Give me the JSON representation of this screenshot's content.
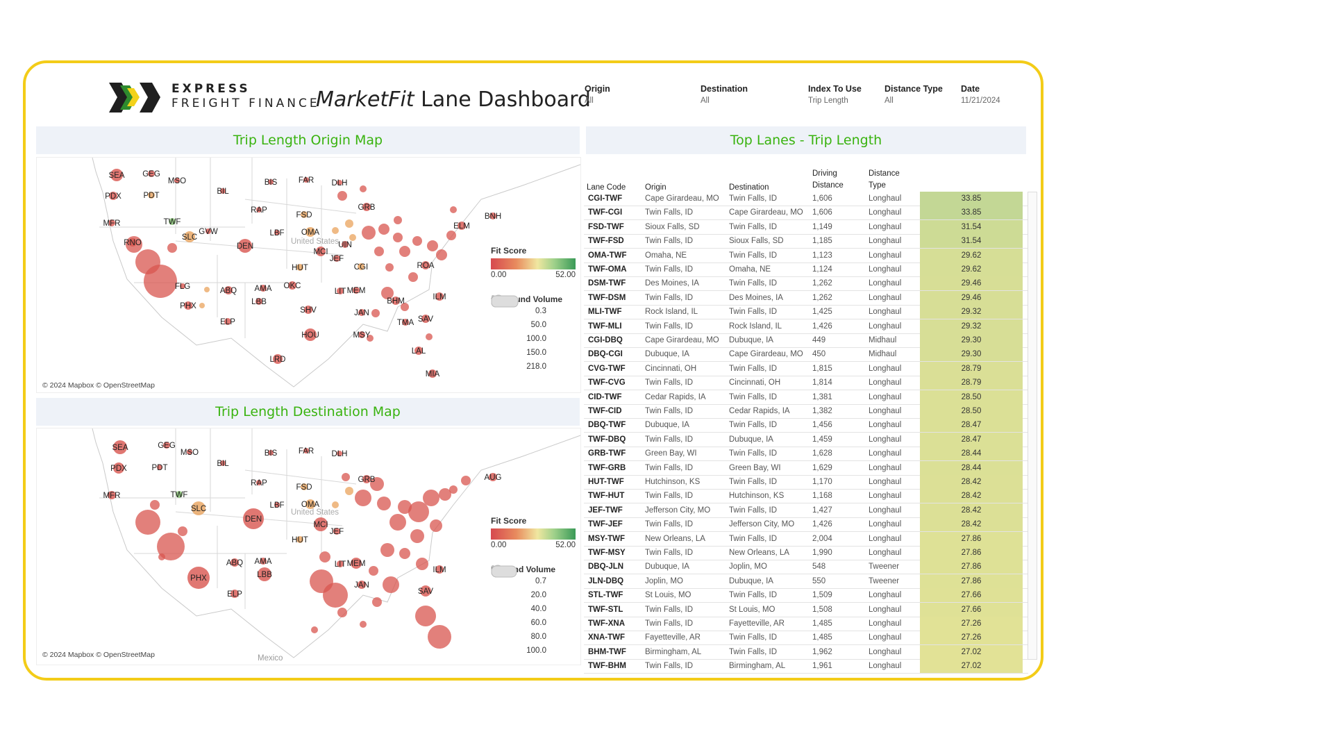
{
  "header": {
    "brand_line1": "EXPRESS",
    "brand_line2": "FREIGHT FINANCE",
    "title_italic": "MarketFit",
    "title_rest": " Lane Dashboard"
  },
  "filters": [
    {
      "label": "Origin",
      "value": "All"
    },
    {
      "label": "Destination",
      "value": "All"
    },
    {
      "label": "Index To Use",
      "value": "Trip Length"
    },
    {
      "label": "Distance Type",
      "value": "All"
    },
    {
      "label": "Date",
      "value": "11/21/2024"
    }
  ],
  "origin_map": {
    "title": "Trip Length Origin Map",
    "credit": "© 2024 Mapbox © OpenStreetMap",
    "country_label": "United States",
    "fit_legend": {
      "title": "Fit Score",
      "min": "0.00",
      "max": "52.00"
    },
    "volume_legend": {
      "title": "Outbound Volume",
      "values": [
        "0.3",
        "50.0",
        "100.0",
        "150.0",
        "218.0"
      ]
    },
    "cities": [
      "SEA",
      "GEG",
      "MSO",
      "BIS",
      "FAR",
      "DLH",
      "PDX",
      "PDT",
      "BIL",
      "MFR",
      "TWF",
      "RAP",
      "FSD",
      "GRB",
      "BNH",
      "ELM",
      "GVW",
      "SLC",
      "DEN",
      "LBF",
      "OMA",
      "UIN",
      "RNO",
      "MCI",
      "JEF",
      "CGI",
      "HUT",
      "ROA",
      "FLG",
      "ABQ",
      "AMA",
      "OKC",
      "LIT",
      "MEM",
      "PHX",
      "LBB",
      "BHM",
      "ILM",
      "ELP",
      "SHV",
      "JAN",
      "TMA",
      "SAV",
      "HOU",
      "MSY",
      "LRD",
      "LAL",
      "MIA"
    ]
  },
  "dest_map": {
    "title": "Trip Length Destination Map",
    "credit": "© 2024 Mapbox © OpenStreetMap",
    "country_label": "United States",
    "mexico_label": "Mexico",
    "fit_legend": {
      "title": "Fit Score",
      "min": "0.00",
      "max": "52.00"
    },
    "volume_legend": {
      "title": "Inbound Volume",
      "values": [
        "0.7",
        "20.0",
        "40.0",
        "60.0",
        "80.0",
        "100.0"
      ]
    },
    "cities": [
      "SEA",
      "GEG",
      "MSO",
      "BIS",
      "FAR",
      "DLH",
      "PDX",
      "PDT",
      "BIL",
      "RAP",
      "MFR",
      "TWF",
      "FSD",
      "GRB",
      "AUG",
      "SLC",
      "DEN",
      "LBF",
      "OMA",
      "MCI",
      "JEF",
      "HUT",
      "ABQ",
      "AMA",
      "LIT",
      "MEM",
      "PHX",
      "LBB",
      "ELP",
      "JAN",
      "ILM",
      "SAV"
    ]
  },
  "top_lanes": {
    "title": "Top Lanes - Trip Length",
    "columns": [
      "Lane Code",
      "Origin",
      "Destination",
      "Driving Distance",
      "Distance Type"
    ],
    "rows": [
      [
        "CGI-TWF",
        "Cape Girardeau, MO",
        "Twin Falls, ID",
        "1,606",
        "Longhaul",
        "33.85"
      ],
      [
        "TWF-CGI",
        "Twin Falls, ID",
        "Cape Girardeau, MO",
        "1,606",
        "Longhaul",
        "33.85"
      ],
      [
        "FSD-TWF",
        "Sioux Falls, SD",
        "Twin Falls, ID",
        "1,149",
        "Longhaul",
        "31.54"
      ],
      [
        "TWF-FSD",
        "Twin Falls, ID",
        "Sioux Falls, SD",
        "1,185",
        "Longhaul",
        "31.54"
      ],
      [
        "OMA-TWF",
        "Omaha, NE",
        "Twin Falls, ID",
        "1,123",
        "Longhaul",
        "29.62"
      ],
      [
        "TWF-OMA",
        "Twin Falls, ID",
        "Omaha, NE",
        "1,124",
        "Longhaul",
        "29.62"
      ],
      [
        "DSM-TWF",
        "Des Moines, IA",
        "Twin Falls, ID",
        "1,262",
        "Longhaul",
        "29.46"
      ],
      [
        "TWF-DSM",
        "Twin Falls, ID",
        "Des Moines, IA",
        "1,262",
        "Longhaul",
        "29.46"
      ],
      [
        "MLI-TWF",
        "Rock Island, IL",
        "Twin Falls, ID",
        "1,425",
        "Longhaul",
        "29.32"
      ],
      [
        "TWF-MLI",
        "Twin Falls, ID",
        "Rock Island, IL",
        "1,426",
        "Longhaul",
        "29.32"
      ],
      [
        "CGI-DBQ",
        "Cape Girardeau, MO",
        "Dubuque, IA",
        "449",
        "Midhaul",
        "29.30"
      ],
      [
        "DBQ-CGI",
        "Dubuque, IA",
        "Cape Girardeau, MO",
        "450",
        "Midhaul",
        "29.30"
      ],
      [
        "CVG-TWF",
        "Cincinnati, OH",
        "Twin Falls, ID",
        "1,815",
        "Longhaul",
        "28.79"
      ],
      [
        "TWF-CVG",
        "Twin Falls, ID",
        "Cincinnati, OH",
        "1,814",
        "Longhaul",
        "28.79"
      ],
      [
        "CID-TWF",
        "Cedar Rapids, IA",
        "Twin Falls, ID",
        "1,381",
        "Longhaul",
        "28.50"
      ],
      [
        "TWF-CID",
        "Twin Falls, ID",
        "Cedar Rapids, IA",
        "1,382",
        "Longhaul",
        "28.50"
      ],
      [
        "DBQ-TWF",
        "Dubuque, IA",
        "Twin Falls, ID",
        "1,456",
        "Longhaul",
        "28.47"
      ],
      [
        "TWF-DBQ",
        "Twin Falls, ID",
        "Dubuque, IA",
        "1,459",
        "Longhaul",
        "28.47"
      ],
      [
        "GRB-TWF",
        "Green Bay, WI",
        "Twin Falls, ID",
        "1,628",
        "Longhaul",
        "28.44"
      ],
      [
        "TWF-GRB",
        "Twin Falls, ID",
        "Green Bay, WI",
        "1,629",
        "Longhaul",
        "28.44"
      ],
      [
        "HUT-TWF",
        "Hutchinson, KS",
        "Twin Falls, ID",
        "1,170",
        "Longhaul",
        "28.42"
      ],
      [
        "TWF-HUT",
        "Twin Falls, ID",
        "Hutchinson, KS",
        "1,168",
        "Longhaul",
        "28.42"
      ],
      [
        "JEF-TWF",
        "Jefferson City, MO",
        "Twin Falls, ID",
        "1,427",
        "Longhaul",
        "28.42"
      ],
      [
        "TWF-JEF",
        "Twin Falls, ID",
        "Jefferson City, MO",
        "1,426",
        "Longhaul",
        "28.42"
      ],
      [
        "MSY-TWF",
        "New Orleans, LA",
        "Twin Falls, ID",
        "2,004",
        "Longhaul",
        "27.86"
      ],
      [
        "TWF-MSY",
        "Twin Falls, ID",
        "New Orleans, LA",
        "1,990",
        "Longhaul",
        "27.86"
      ],
      [
        "DBQ-JLN",
        "Dubuque, IA",
        "Joplin, MO",
        "548",
        "Tweener",
        "27.86"
      ],
      [
        "JLN-DBQ",
        "Joplin, MO",
        "Dubuque, IA",
        "550",
        "Tweener",
        "27.86"
      ],
      [
        "STL-TWF",
        "St Louis, MO",
        "Twin Falls, ID",
        "1,509",
        "Longhaul",
        "27.66"
      ],
      [
        "TWF-STL",
        "Twin Falls, ID",
        "St Louis, MO",
        "1,508",
        "Longhaul",
        "27.66"
      ],
      [
        "TWF-XNA",
        "Twin Falls, ID",
        "Fayetteville, AR",
        "1,485",
        "Longhaul",
        "27.26"
      ],
      [
        "XNA-TWF",
        "Fayetteville, AR",
        "Twin Falls, ID",
        "1,485",
        "Longhaul",
        "27.26"
      ],
      [
        "BHM-TWF",
        "Birmingham, AL",
        "Twin Falls, ID",
        "1,962",
        "Longhaul",
        "27.02"
      ],
      [
        "TWF-BHM",
        "Twin Falls, ID",
        "Birmingham, AL",
        "1,961",
        "Longhaul",
        "27.02"
      ]
    ]
  },
  "colors": {
    "frame": "#f3cc18",
    "title_green": "#39b30f",
    "high_fit": "#c2d795",
    "mid_fit": "#dde094"
  }
}
